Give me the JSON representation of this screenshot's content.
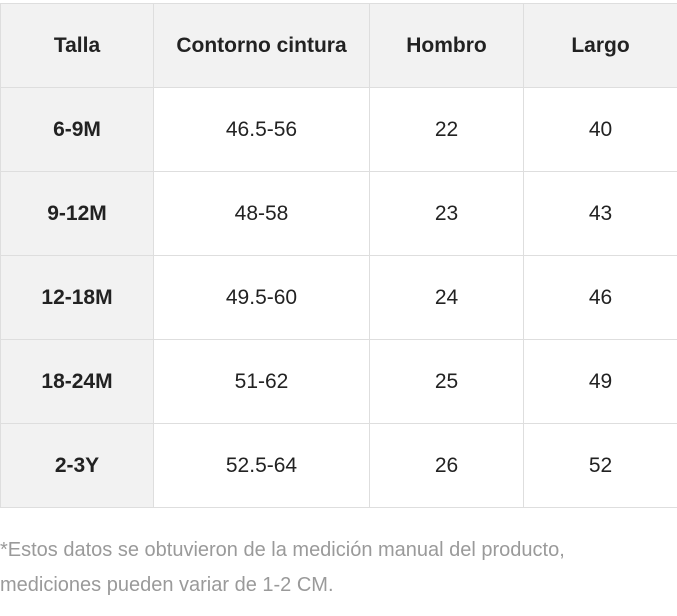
{
  "table": {
    "header": [
      "Talla",
      "Contorno cintura",
      "Hombro",
      "Largo"
    ],
    "rows": [
      [
        "6-9M",
        "46.5-56",
        "22",
        "40"
      ],
      [
        "9-12M",
        "48-58",
        "23",
        "43"
      ],
      [
        "12-18M",
        "49.5-60",
        "24",
        "46"
      ],
      [
        "18-24M",
        "51-62",
        "25",
        "49"
      ],
      [
        "2-3Y",
        "52.5-64",
        "26",
        "52"
      ]
    ]
  },
  "footnote": {
    "lines": [
      "*Estos datos se obtuvieron de la medición manual del producto,",
      "mediciones pueden variar de 1-2 CM."
    ]
  }
}
